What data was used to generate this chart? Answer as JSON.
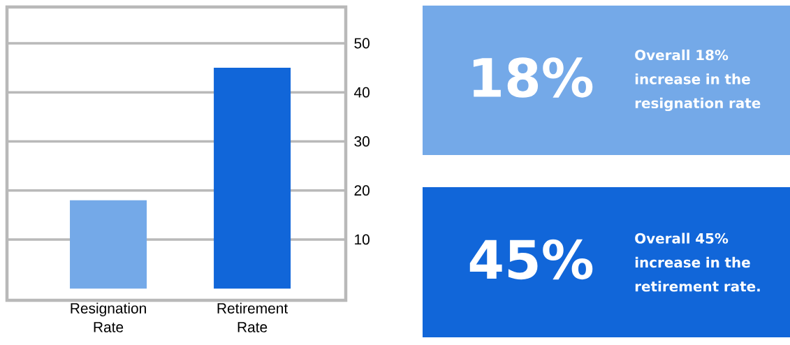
{
  "chart_data": [
    {
      "type": "bar",
      "categories": [
        "Resignation Rate",
        "Retirement Rate"
      ],
      "values": [
        18,
        45
      ],
      "colors": [
        "#74a9e8",
        "#1166d9"
      ],
      "ylim": [
        -2.4,
        57.4
      ],
      "yticks": [
        10,
        20,
        30,
        40,
        50
      ],
      "grid": "y"
    },
    {
      "type": "other",
      "title": "18%",
      "annotations": [
        "Overall 18% increase in the resignation rate"
      ],
      "color": "#74a9e8"
    },
    {
      "type": "other",
      "title": "45%",
      "annotations": [
        "Overall 45% increase in the retirement rate."
      ],
      "color": "#1166d9"
    }
  ]
}
